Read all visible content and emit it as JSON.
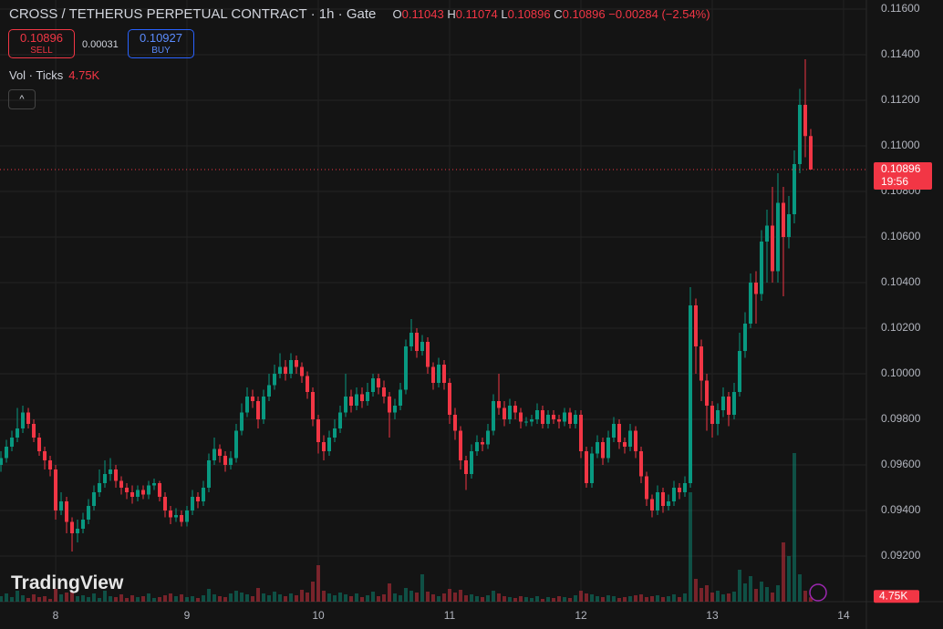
{
  "header": {
    "symbol": "CROSS / TETHERUS PERPETUAL CONTRACT",
    "interval": "1h",
    "exchange": "Gate",
    "o": "O",
    "h": "H",
    "l": "L",
    "c": "C",
    "change": "−0.00284",
    "change_pct": "(−2.54%)"
  },
  "trade_panel": {
    "sell_price": "0.10896",
    "sell": "SELL",
    "spread": "0.00031",
    "buy_price": "0.10927",
    "buy": "BUY"
  },
  "watermark": "TradingView",
  "countdown": "19:56",
  "chart_data": {
    "type": "candlestick",
    "up_color": "#089981",
    "down_color": "#f23645",
    "grid": true,
    "x": [
      -10,
      -9,
      -8,
      -7,
      -6,
      -5,
      -4,
      -3,
      -2,
      -1,
      0,
      1,
      2,
      3,
      4,
      5,
      6,
      7,
      8,
      9,
      10,
      11,
      12,
      13,
      14,
      15,
      16,
      17,
      18,
      19,
      20,
      21,
      22,
      23,
      24,
      25,
      26,
      27,
      28,
      29,
      30,
      31,
      32,
      33,
      34,
      35,
      36,
      37,
      38,
      39,
      40,
      41,
      42,
      43,
      44,
      45,
      46,
      47,
      48,
      49,
      50,
      51,
      52,
      53,
      54,
      55,
      56,
      57,
      58,
      59,
      60,
      61,
      62,
      63,
      64,
      65,
      66,
      67,
      68,
      69,
      70,
      71,
      72,
      73,
      74,
      75,
      76,
      77,
      78,
      79,
      80,
      81,
      82,
      83,
      84,
      85,
      86,
      87,
      88,
      89,
      90,
      91,
      92,
      93,
      94,
      95,
      96,
      97,
      98,
      99,
      100,
      101,
      102,
      103,
      104,
      105,
      106,
      107,
      108,
      109,
      110,
      111,
      112,
      113,
      114,
      115,
      116,
      117,
      118,
      119,
      120,
      121,
      122,
      123,
      124,
      125,
      126,
      127,
      128,
      129,
      130,
      131,
      132,
      133,
      134,
      135,
      136,
      137,
      138
    ],
    "open": [
      0.096,
      0.0963,
      0.0968,
      0.0972,
      0.0976,
      0.0983,
      0.0978,
      0.0972,
      0.0966,
      0.0962,
      0.0958,
      0.094,
      0.0944,
      0.0935,
      0.093,
      0.0932,
      0.0936,
      0.0942,
      0.0948,
      0.0952,
      0.0956,
      0.0958,
      0.0953,
      0.095,
      0.0948,
      0.0946,
      0.0949,
      0.0947,
      0.0951,
      0.0952,
      0.0946,
      0.094,
      0.0937,
      0.0938,
      0.0935,
      0.094,
      0.0946,
      0.0944,
      0.095,
      0.0962,
      0.0967,
      0.0964,
      0.096,
      0.0963,
      0.0975,
      0.0983,
      0.099,
      0.0988,
      0.098,
      0.099,
      0.0995,
      0.1,
      0.1003,
      0.1,
      0.1006,
      0.1003,
      0.0999,
      0.0992,
      0.098,
      0.097,
      0.0966,
      0.0972,
      0.0976,
      0.0983,
      0.099,
      0.0986,
      0.0991,
      0.0988,
      0.0992,
      0.0998,
      0.0994,
      0.099,
      0.0983,
      0.0986,
      0.0993,
      0.1012,
      0.1018,
      0.101,
      0.1014,
      0.1003,
      0.0996,
      0.1004,
      0.0996,
      0.0982,
      0.0975,
      0.0962,
      0.0956,
      0.0966,
      0.097,
      0.0969,
      0.0975,
      0.0988,
      0.0985,
      0.098,
      0.0986,
      0.0983,
      0.0979,
      0.0979,
      0.098,
      0.0984,
      0.0978,
      0.0982,
      0.098,
      0.0979,
      0.0983,
      0.0978,
      0.0982,
      0.0966,
      0.0952,
      0.0965,
      0.097,
      0.0963,
      0.0972,
      0.0978,
      0.097,
      0.0968,
      0.0975,
      0.0966,
      0.0955,
      0.0945,
      0.094,
      0.0948,
      0.0942,
      0.0944,
      0.095,
      0.0948,
      0.0952,
      0.103,
      0.1012,
      0.0997,
      0.0986,
      0.0978,
      0.0984,
      0.099,
      0.0982,
      0.0992,
      0.101,
      0.1022,
      0.104,
      0.1035,
      0.1058,
      0.1065,
      0.1045,
      0.1075,
      0.106,
      0.107,
      0.1092,
      0.1118,
      0.11043
    ],
    "high": [
      0.0966,
      0.0971,
      0.0975,
      0.0985,
      0.0986,
      0.0985,
      0.098,
      0.0974,
      0.0968,
      0.0964,
      0.096,
      0.0948,
      0.0946,
      0.0937,
      0.0936,
      0.0939,
      0.0945,
      0.0951,
      0.0958,
      0.0962,
      0.0963,
      0.096,
      0.0955,
      0.0952,
      0.0951,
      0.0951,
      0.0951,
      0.0953,
      0.0954,
      0.0953,
      0.0948,
      0.0942,
      0.0941,
      0.094,
      0.0942,
      0.0949,
      0.0948,
      0.0953,
      0.0965,
      0.0972,
      0.0969,
      0.0966,
      0.0966,
      0.0978,
      0.0987,
      0.0994,
      0.0993,
      0.099,
      0.0993,
      0.1,
      0.1004,
      0.1009,
      0.1006,
      0.1009,
      0.1008,
      0.1005,
      0.1001,
      0.0994,
      0.0982,
      0.0973,
      0.0975,
      0.098,
      0.0986,
      0.1,
      0.0993,
      0.0994,
      0.0994,
      0.0996,
      0.1,
      0.1,
      0.0997,
      0.0992,
      0.0989,
      0.0996,
      0.1015,
      0.1024,
      0.102,
      0.1017,
      0.1016,
      0.1005,
      0.1007,
      0.1006,
      0.0998,
      0.0985,
      0.0977,
      0.0964,
      0.0969,
      0.0973,
      0.0972,
      0.0978,
      0.0991,
      0.1,
      0.0988,
      0.0989,
      0.0988,
      0.0985,
      0.0981,
      0.0982,
      0.0987,
      0.0986,
      0.0984,
      0.0984,
      0.0982,
      0.0985,
      0.0985,
      0.0984,
      0.0984,
      0.0968,
      0.0968,
      0.0973,
      0.0972,
      0.0975,
      0.0981,
      0.098,
      0.0972,
      0.0978,
      0.0977,
      0.0968,
      0.0957,
      0.0947,
      0.0951,
      0.095,
      0.0947,
      0.0953,
      0.0952,
      0.0955,
      0.1038,
      0.1033,
      0.1015,
      0.1,
      0.0988,
      0.0987,
      0.0994,
      0.0992,
      0.0996,
      0.1018,
      0.1027,
      0.1044,
      0.1045,
      0.1063,
      0.1072,
      0.1082,
      0.1088,
      0.1082,
      0.1078,
      0.1098,
      0.1125,
      0.1138,
      0.11074
    ],
    "low": [
      0.0957,
      0.0961,
      0.0966,
      0.097,
      0.0974,
      0.0976,
      0.097,
      0.0964,
      0.0958,
      0.0955,
      0.0936,
      0.0938,
      0.093,
      0.0922,
      0.0926,
      0.093,
      0.0934,
      0.094,
      0.0946,
      0.095,
      0.0953,
      0.095,
      0.0947,
      0.0945,
      0.0943,
      0.0944,
      0.0945,
      0.0945,
      0.0949,
      0.0944,
      0.0937,
      0.0934,
      0.0935,
      0.0933,
      0.0933,
      0.0938,
      0.0941,
      0.0942,
      0.0948,
      0.096,
      0.0961,
      0.0957,
      0.0958,
      0.0961,
      0.0973,
      0.0981,
      0.0985,
      0.0976,
      0.0978,
      0.0988,
      0.0993,
      0.0998,
      0.0997,
      0.0998,
      0.1,
      0.0996,
      0.0989,
      0.0977,
      0.0965,
      0.0962,
      0.0964,
      0.097,
      0.0974,
      0.0981,
      0.0983,
      0.0984,
      0.0985,
      0.0986,
      0.099,
      0.0991,
      0.0987,
      0.0972,
      0.098,
      0.0984,
      0.0991,
      0.101,
      0.1007,
      0.1008,
      0.1,
      0.0993,
      0.0994,
      0.0993,
      0.0978,
      0.0971,
      0.0958,
      0.0949,
      0.0954,
      0.0964,
      0.0966,
      0.0967,
      0.0973,
      0.0982,
      0.0977,
      0.0978,
      0.098,
      0.0976,
      0.0977,
      0.0977,
      0.0978,
      0.0976,
      0.0976,
      0.0978,
      0.0976,
      0.0977,
      0.0976,
      0.0976,
      0.0963,
      0.095,
      0.095,
      0.0963,
      0.096,
      0.0961,
      0.097,
      0.0967,
      0.0965,
      0.0966,
      0.0963,
      0.0952,
      0.0942,
      0.0937,
      0.0938,
      0.0939,
      0.094,
      0.0942,
      0.0945,
      0.0946,
      0.095,
      0.1,
      0.0988,
      0.0975,
      0.0972,
      0.0973,
      0.0981,
      0.0977,
      0.098,
      0.099,
      0.1007,
      0.102,
      0.1022,
      0.1032,
      0.104,
      0.104,
      0.104,
      0.1034,
      0.1055,
      0.1066,
      0.1088,
      0.1095,
      0.10896
    ],
    "close": [
      0.0963,
      0.0968,
      0.0972,
      0.0976,
      0.0983,
      0.0978,
      0.0972,
      0.0966,
      0.0962,
      0.0958,
      0.094,
      0.0944,
      0.0935,
      0.093,
      0.0932,
      0.0936,
      0.0942,
      0.0948,
      0.0952,
      0.0956,
      0.0958,
      0.0953,
      0.095,
      0.0948,
      0.0946,
      0.0949,
      0.0947,
      0.0951,
      0.0952,
      0.0946,
      0.094,
      0.0937,
      0.0938,
      0.0935,
      0.094,
      0.0946,
      0.0944,
      0.095,
      0.0962,
      0.0967,
      0.0964,
      0.096,
      0.0963,
      0.0975,
      0.0983,
      0.099,
      0.0988,
      0.098,
      0.099,
      0.0995,
      0.1,
      0.1003,
      0.1,
      0.1006,
      0.1003,
      0.0999,
      0.0992,
      0.098,
      0.097,
      0.0966,
      0.0972,
      0.0976,
      0.0983,
      0.099,
      0.0986,
      0.0991,
      0.0988,
      0.0992,
      0.0998,
      0.0994,
      0.099,
      0.0983,
      0.0986,
      0.0993,
      0.1012,
      0.1018,
      0.101,
      0.1014,
      0.1003,
      0.0996,
      0.1004,
      0.0996,
      0.0982,
      0.0975,
      0.0962,
      0.0956,
      0.0966,
      0.097,
      0.0969,
      0.0975,
      0.0988,
      0.0985,
      0.098,
      0.0986,
      0.0983,
      0.0979,
      0.0979,
      0.098,
      0.0984,
      0.0978,
      0.0982,
      0.098,
      0.0979,
      0.0983,
      0.0978,
      0.0982,
      0.0966,
      0.0952,
      0.0965,
      0.097,
      0.0963,
      0.0972,
      0.0978,
      0.097,
      0.0968,
      0.0975,
      0.0966,
      0.0955,
      0.0945,
      0.094,
      0.0948,
      0.0942,
      0.0944,
      0.095,
      0.0948,
      0.0952,
      0.103,
      0.1012,
      0.0997,
      0.0986,
      0.0978,
      0.0984,
      0.099,
      0.0982,
      0.0992,
      0.101,
      0.1022,
      0.104,
      0.1035,
      0.1058,
      0.1065,
      0.1045,
      0.1075,
      0.106,
      0.107,
      0.1092,
      0.1118,
      0.11043,
      0.10896
    ],
    "volume": {
      "name": "Vol · Ticks",
      "vlim": [
        0,
        660000
      ],
      "values": [
        6000,
        9000,
        5000,
        12000,
        7000,
        4000,
        8000,
        5000,
        6000,
        3000,
        14000,
        8000,
        10000,
        11000,
        6000,
        7000,
        5000,
        9000,
        4000,
        12000,
        6000,
        5000,
        8000,
        4000,
        7000,
        5000,
        6000,
        9000,
        4000,
        5000,
        7000,
        9000,
        6000,
        8000,
        5000,
        6000,
        4000,
        7000,
        14000,
        8000,
        6000,
        5000,
        9000,
        12000,
        10000,
        8000,
        6000,
        15000,
        9000,
        7000,
        11000,
        8000,
        6000,
        9000,
        7000,
        13000,
        10000,
        22000,
        40000,
        12000,
        9000,
        7000,
        10000,
        8000,
        6000,
        9000,
        5000,
        7000,
        11000,
        6000,
        8000,
        20000,
        9000,
        7000,
        15000,
        12000,
        10000,
        30000,
        11000,
        8000,
        6000,
        9000,
        14000,
        10000,
        13000,
        7000,
        8000,
        6000,
        5000,
        7000,
        12000,
        9000,
        6000,
        5000,
        4000,
        6000,
        5000,
        4000,
        6000,
        3000,
        5000,
        4000,
        6000,
        5000,
        4000,
        7000,
        12000,
        9000,
        8000,
        6000,
        5000,
        7000,
        6000,
        4000,
        5000,
        6000,
        7000,
        8000,
        5000,
        6000,
        7000,
        5000,
        6000,
        8000,
        5000,
        9000,
        120000,
        25000,
        15000,
        18000,
        10000,
        12000,
        8000,
        9000,
        11000,
        35000,
        20000,
        28000,
        14000,
        22000,
        16000,
        10000,
        18000,
        65000,
        50000,
        163000,
        30000,
        12000,
        4750
      ],
      "value_labels": [
        null,
        null,
        null,
        null,
        null,
        null,
        null,
        null,
        null,
        null,
        null,
        null,
        null,
        null,
        null,
        null,
        null,
        null,
        null,
        null,
        null,
        null,
        null,
        null,
        null,
        null,
        null,
        null,
        null,
        null,
        null,
        null,
        null,
        null,
        null,
        null,
        null,
        null,
        null,
        null,
        null,
        null,
        null,
        null,
        null,
        null,
        null,
        null,
        null,
        null,
        null,
        null,
        null,
        null,
        null,
        null,
        null,
        null,
        null,
        null,
        null,
        null,
        null,
        null,
        null,
        null,
        null,
        null,
        null,
        null,
        null,
        null,
        null,
        null,
        null,
        null,
        null,
        null,
        null,
        null,
        null,
        null,
        null,
        null,
        null,
        null,
        null,
        null,
        null,
        null,
        null,
        null,
        null,
        null,
        null,
        null,
        null,
        null,
        null,
        null,
        null,
        null,
        null,
        null,
        null,
        null,
        null,
        null,
        null,
        null,
        null,
        null,
        null,
        null,
        null,
        null,
        null,
        null,
        null,
        null,
        null,
        null,
        null,
        null,
        null,
        null,
        null,
        null,
        null,
        null,
        null,
        null,
        null,
        null,
        null,
        null,
        null,
        null,
        null,
        null,
        null,
        null,
        null,
        null,
        null,
        null,
        null,
        null,
        "4.75K"
      ]
    },
    "xlim": [
      -10.17,
      148.17
    ],
    "xticks": [
      {
        "value": 0,
        "label": "8"
      },
      {
        "value": 24,
        "label": "9"
      },
      {
        "value": 48,
        "label": "10"
      },
      {
        "value": 72,
        "label": "11"
      },
      {
        "value": 96,
        "label": "12"
      },
      {
        "value": 120,
        "label": "13"
      },
      {
        "value": 144,
        "label": "14"
      }
    ],
    "ylim": [
      0.09,
      0.1164
    ],
    "yticks": [
      {
        "value": 0.092,
        "label": "0.09200"
      },
      {
        "value": 0.094,
        "label": "0.09400"
      },
      {
        "value": 0.096,
        "label": "0.09600"
      },
      {
        "value": 0.098,
        "label": "0.09800"
      },
      {
        "value": 0.1,
        "label": "0.10000"
      },
      {
        "value": 0.102,
        "label": "0.10200"
      },
      {
        "value": 0.104,
        "label": "0.10400"
      },
      {
        "value": 0.106,
        "label": "0.10600"
      },
      {
        "value": 0.108,
        "label": "0.10800"
      },
      {
        "value": 0.11,
        "label": "0.11000"
      },
      {
        "value": 0.112,
        "label": "0.11200"
      },
      {
        "value": 0.114,
        "label": "0.11400"
      },
      {
        "value": 0.116,
        "label": "0.11600"
      }
    ]
  }
}
